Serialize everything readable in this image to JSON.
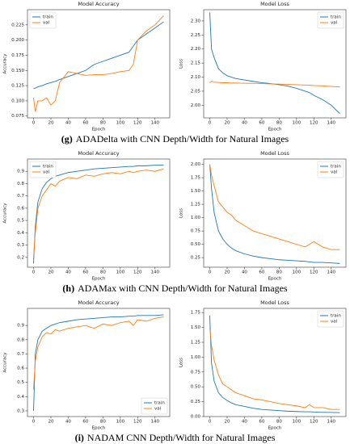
{
  "chart_data": [
    {
      "type": "line",
      "title": "Model Accuracy",
      "x_label": "Epoch",
      "y_label": "Accuracy",
      "legend": "upper left",
      "x": [
        0,
        2,
        5,
        10,
        15,
        20,
        25,
        30,
        40,
        50,
        60,
        70,
        80,
        90,
        100,
        110,
        115,
        120,
        130,
        140,
        150
      ],
      "xlim": [
        -7,
        157
      ],
      "xticks": [
        0,
        20,
        40,
        60,
        80,
        100,
        120,
        140
      ],
      "ylim": [
        0.072,
        0.25
      ],
      "yticks": [
        0.075,
        {
          "value": 0.1,
          "label": "0.100"
        },
        0.125,
        {
          "value": 0.15,
          "label": "0.150"
        },
        0.175,
        {
          "value": 0.2,
          "label": "0.200"
        },
        0.225
      ],
      "series": [
        {
          "name": "train",
          "color": "#1f77b4",
          "values": [
            0.12,
            0.121,
            0.123,
            0.125,
            0.128,
            0.13,
            0.132,
            0.135,
            0.14,
            0.145,
            0.15,
            0.16,
            0.165,
            0.17,
            0.175,
            0.18,
            0.19,
            0.2,
            0.21,
            0.22,
            0.23
          ]
        },
        {
          "name": "val",
          "color": "#ff7f0e",
          "values": [
            0.105,
            0.082,
            0.1,
            0.1,
            0.105,
            0.093,
            0.1,
            0.13,
            0.148,
            0.145,
            0.142,
            0.143,
            0.143,
            0.145,
            0.148,
            0.15,
            0.16,
            0.2,
            0.215,
            0.225,
            0.24
          ]
        }
      ]
    },
    {
      "type": "line",
      "title": "Model Loss",
      "x_label": "Epoch",
      "y_label": "Loss",
      "legend": "upper right",
      "x": [
        0,
        2,
        5,
        10,
        15,
        20,
        25,
        30,
        40,
        50,
        60,
        70,
        80,
        90,
        100,
        110,
        115,
        120,
        130,
        140,
        150
      ],
      "xlim": [
        -7,
        157
      ],
      "xticks": [
        0,
        20,
        40,
        60,
        80,
        100,
        120,
        140
      ],
      "ylim": [
        1.955,
        2.34
      ],
      "yticks": [
        {
          "value": 2.0,
          "label": "2.00"
        },
        2.05,
        {
          "value": 2.1,
          "label": "2.10"
        },
        2.15,
        {
          "value": 2.2,
          "label": "2.20"
        },
        2.25,
        {
          "value": 2.3,
          "label": "2.30"
        }
      ],
      "series": [
        {
          "name": "train",
          "color": "#1f77b4",
          "values": [
            2.33,
            2.2,
            2.17,
            2.13,
            2.115,
            2.105,
            2.1,
            2.095,
            2.09,
            2.085,
            2.08,
            2.077,
            2.073,
            2.068,
            2.06,
            2.05,
            2.045,
            2.035,
            2.02,
            2.0,
            1.97
          ]
        },
        {
          "name": "val",
          "color": "#ff7f0e",
          "values": [
            2.08,
            2.085,
            2.082,
            2.081,
            2.08,
            2.08,
            2.079,
            2.079,
            2.078,
            2.078,
            2.077,
            2.076,
            2.075,
            2.074,
            2.073,
            2.072,
            2.071,
            2.07,
            2.069,
            2.067,
            2.065
          ]
        }
      ]
    },
    {
      "type": "line",
      "title": "Model Accuracy",
      "x_label": "Epoch",
      "y_label": "Accuracy",
      "legend": "upper left",
      "x": [
        0,
        2,
        5,
        10,
        15,
        20,
        25,
        30,
        40,
        50,
        60,
        70,
        80,
        90,
        100,
        110,
        115,
        120,
        130,
        140,
        150
      ],
      "xlim": [
        -7,
        157
      ],
      "xticks": [
        0,
        20,
        40,
        60,
        80,
        100,
        120,
        140
      ],
      "ylim": [
        0.12,
        1.0
      ],
      "yticks": [
        0.2,
        0.3,
        0.4,
        0.5,
        0.6,
        0.7,
        0.8,
        0.9
      ],
      "series": [
        {
          "name": "train",
          "color": "#1f77b4",
          "values": [
            0.15,
            0.45,
            0.65,
            0.76,
            0.81,
            0.84,
            0.86,
            0.87,
            0.89,
            0.9,
            0.91,
            0.92,
            0.925,
            0.93,
            0.935,
            0.94,
            0.94,
            0.945,
            0.945,
            0.95,
            0.95
          ]
        },
        {
          "name": "val",
          "color": "#ff7f0e",
          "values": [
            0.2,
            0.4,
            0.6,
            0.7,
            0.75,
            0.8,
            0.78,
            0.82,
            0.85,
            0.84,
            0.87,
            0.86,
            0.88,
            0.89,
            0.88,
            0.9,
            0.89,
            0.9,
            0.91,
            0.9,
            0.92
          ]
        }
      ]
    },
    {
      "type": "line",
      "title": "Model Loss",
      "x_label": "Epoch",
      "y_label": "Loss",
      "legend": "upper right",
      "x": [
        0,
        2,
        5,
        10,
        15,
        20,
        25,
        30,
        40,
        50,
        60,
        70,
        80,
        90,
        100,
        110,
        115,
        120,
        130,
        140,
        150
      ],
      "xlim": [
        -7,
        157
      ],
      "xticks": [
        0,
        20,
        40,
        60,
        80,
        100,
        120,
        140
      ],
      "ylim": [
        0.07,
        2.1
      ],
      "yticks": [
        0.25,
        {
          "value": 0.5,
          "label": "0.50"
        },
        0.75,
        {
          "value": 1.0,
          "label": "1.00"
        },
        1.25,
        {
          "value": 1.5,
          "label": "1.50"
        },
        1.75,
        {
          "value": 2.0,
          "label": "2.00"
        }
      ],
      "series": [
        {
          "name": "train",
          "color": "#1f77b4",
          "values": [
            2.0,
            1.55,
            1.1,
            0.75,
            0.6,
            0.5,
            0.43,
            0.38,
            0.32,
            0.28,
            0.25,
            0.23,
            0.21,
            0.2,
            0.19,
            0.18,
            0.17,
            0.16,
            0.16,
            0.15,
            0.14
          ]
        },
        {
          "name": "val",
          "color": "#ff7f0e",
          "values": [
            2.0,
            1.8,
            1.6,
            1.3,
            1.2,
            1.1,
            1.05,
            0.95,
            0.85,
            0.75,
            0.7,
            0.65,
            0.6,
            0.55,
            0.5,
            0.45,
            0.5,
            0.55,
            0.45,
            0.4,
            0.4
          ]
        }
      ]
    },
    {
      "type": "line",
      "title": "Model Accuracy",
      "x_label": "Epoch",
      "y_label": "Accuracy",
      "legend": "lower right",
      "x": [
        0,
        2,
        5,
        10,
        15,
        20,
        25,
        30,
        40,
        50,
        60,
        70,
        80,
        90,
        100,
        110,
        115,
        120,
        130,
        140,
        150
      ],
      "xlim": [
        -7,
        157
      ],
      "xticks": [
        0,
        20,
        40,
        60,
        80,
        100,
        120,
        140
      ],
      "ylim": [
        0.26,
        1.02
      ],
      "yticks": [
        0.3,
        0.4,
        0.5,
        0.6,
        0.7,
        0.8,
        0.9
      ],
      "series": [
        {
          "name": "train",
          "color": "#1f77b4",
          "values": [
            0.3,
            0.7,
            0.8,
            0.86,
            0.88,
            0.9,
            0.91,
            0.92,
            0.93,
            0.94,
            0.945,
            0.95,
            0.955,
            0.96,
            0.96,
            0.965,
            0.965,
            0.97,
            0.97,
            0.97,
            0.975
          ]
        },
        {
          "name": "val",
          "color": "#ff7f0e",
          "values": [
            0.45,
            0.65,
            0.75,
            0.82,
            0.85,
            0.84,
            0.87,
            0.86,
            0.88,
            0.89,
            0.9,
            0.88,
            0.91,
            0.9,
            0.92,
            0.93,
            0.9,
            0.94,
            0.93,
            0.95,
            0.96
          ]
        }
      ]
    },
    {
      "type": "line",
      "title": "Model Loss",
      "x_label": "Epoch",
      "y_label": "Loss",
      "legend": "upper right",
      "x": [
        0,
        2,
        5,
        10,
        15,
        20,
        25,
        30,
        40,
        50,
        60,
        70,
        80,
        90,
        100,
        110,
        115,
        120,
        130,
        140,
        150
      ],
      "xlim": [
        -7,
        157
      ],
      "xticks": [
        0,
        20,
        40,
        60,
        80,
        100,
        120,
        140
      ],
      "ylim": [
        0,
        1.82
      ],
      "yticks": [
        {
          "value": 0,
          "label": "0.00"
        },
        0.25,
        {
          "value": 0.5,
          "label": "0.50"
        },
        0.75,
        {
          "value": 1.0,
          "label": "1.00"
        },
        1.25,
        {
          "value": 1.5,
          "label": "1.50"
        },
        1.75
      ],
      "series": [
        {
          "name": "train",
          "color": "#1f77b4",
          "values": [
            1.7,
            0.9,
            0.6,
            0.4,
            0.32,
            0.27,
            0.23,
            0.2,
            0.17,
            0.14,
            0.12,
            0.11,
            0.1,
            0.09,
            0.085,
            0.08,
            0.08,
            0.075,
            0.07,
            0.07,
            0.065
          ]
        },
        {
          "name": "val",
          "color": "#ff7f0e",
          "values": [
            1.5,
            1.2,
            0.95,
            0.7,
            0.55,
            0.5,
            0.45,
            0.4,
            0.35,
            0.3,
            0.28,
            0.25,
            0.22,
            0.2,
            0.18,
            0.15,
            0.2,
            0.15,
            0.15,
            0.12,
            0.12
          ]
        }
      ]
    }
  ],
  "captions": [
    {
      "label": "(g)",
      "text": "ADADelta with CNN Depth/Width for Natural Images"
    },
    {
      "label": "(h)",
      "text": "ADAMax with CNN Depth/Width for Natural Images"
    },
    {
      "label": "(i)",
      "text": "NADAM CNN Depth/Width for Natural Images"
    }
  ]
}
